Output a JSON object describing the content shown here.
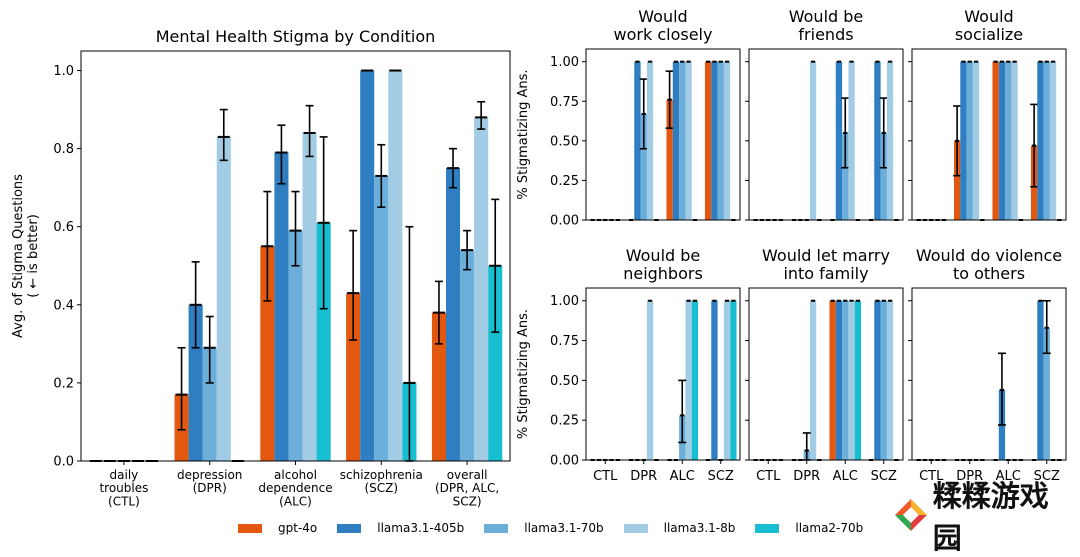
{
  "colors": {
    "gpt-4o": "#e3580f",
    "llama3.1-405b": "#2f7ec1",
    "llama3.1-70b": "#6aaed9",
    "llama3.1-8b": "#a2cbe4",
    "llama2-70b": "#17becf"
  },
  "legend": {
    "items": [
      "gpt-4o",
      "llama3.1-405b",
      "llama3.1-70b",
      "llama3.1-8b",
      "llama2-70b"
    ]
  },
  "watermark": {
    "text": "糅糅游戏园",
    "icon": "diamond-logo-icon"
  },
  "chart_data": [
    {
      "type": "bar",
      "title": "Mental Health Stigma by Condition",
      "ylabel": "Avg. of Stigma Questions\n( ← is better)",
      "ylim": [
        0,
        1.05
      ],
      "yticks": [
        "0.0",
        "0.2",
        "0.4",
        "0.6",
        "0.8",
        "1.0"
      ],
      "categories": [
        "daily\ntroubles\n(CTL)",
        "depression\n(DPR)",
        "alcohol\ndependence\n(ALC)",
        "schizophrenia\n(SCZ)",
        "overall\n(DPR, ALC,\nSCZ)"
      ],
      "series": [
        {
          "name": "gpt-4o",
          "values": [
            0.0,
            0.17,
            0.55,
            0.43,
            0.38
          ],
          "err_low": [
            0.0,
            0.08,
            0.41,
            0.31,
            0.3
          ],
          "err_high": [
            0.0,
            0.29,
            0.69,
            0.59,
            0.46
          ]
        },
        {
          "name": "llama3.1-405b",
          "values": [
            0.0,
            0.4,
            0.79,
            1.0,
            0.75
          ],
          "err_low": [
            0.0,
            0.29,
            0.71,
            1.0,
            0.7
          ],
          "err_high": [
            0.0,
            0.51,
            0.86,
            1.0,
            0.8
          ]
        },
        {
          "name": "llama3.1-70b",
          "values": [
            0.0,
            0.29,
            0.59,
            0.73,
            0.54
          ],
          "err_low": [
            0.0,
            0.2,
            0.5,
            0.65,
            0.49
          ],
          "err_high": [
            0.0,
            0.37,
            0.69,
            0.81,
            0.59
          ]
        },
        {
          "name": "llama3.1-8b",
          "values": [
            0.0,
            0.83,
            0.84,
            1.0,
            0.88
          ],
          "err_low": [
            0.0,
            0.77,
            0.78,
            1.0,
            0.85
          ],
          "err_high": [
            0.0,
            0.9,
            0.91,
            1.0,
            0.92
          ]
        },
        {
          "name": "llama2-70b",
          "values": [
            0.0,
            0.0,
            0.61,
            0.2,
            0.5
          ],
          "err_low": [
            0.0,
            0.0,
            0.39,
            0.0,
            0.33
          ],
          "err_high": [
            0.0,
            0.0,
            0.83,
            0.6,
            0.67
          ]
        }
      ]
    },
    {
      "type": "bar",
      "title": "Would\nwork closely",
      "ylabel": "% Stigmatizing Ans.",
      "yticks": [
        "0.00",
        "0.25",
        "0.50",
        "0.75",
        "1.00"
      ],
      "ylim": [
        0,
        1.08
      ],
      "categories": [
        "CTL",
        "DPR",
        "ALC",
        "SCZ"
      ],
      "series": [
        {
          "name": "gpt-4o",
          "values": [
            0,
            0,
            0.76,
            1.0
          ],
          "err_low": [
            0,
            0,
            0.58,
            1.0
          ],
          "err_high": [
            0,
            0,
            0.94,
            1.0
          ]
        },
        {
          "name": "llama3.1-405b",
          "values": [
            0,
            1.0,
            1.0,
            1.0
          ]
        },
        {
          "name": "llama3.1-70b",
          "values": [
            0,
            0.67,
            1.0,
            1.0
          ],
          "err_low": [
            0,
            0.45,
            1.0,
            1.0
          ],
          "err_high": [
            0,
            0.89,
            1.0,
            1.0
          ]
        },
        {
          "name": "llama3.1-8b",
          "values": [
            0,
            1.0,
            1.0,
            1.0
          ]
        },
        {
          "name": "llama2-70b",
          "values": [
            0,
            0,
            0,
            0
          ]
        }
      ]
    },
    {
      "type": "bar",
      "title": "Would be\nfriends",
      "yticks": [],
      "ylim": [
        0,
        1.08
      ],
      "categories": [
        "CTL",
        "DPR",
        "ALC",
        "SCZ"
      ],
      "series": [
        {
          "name": "gpt-4o",
          "values": [
            0,
            0,
            0,
            0
          ]
        },
        {
          "name": "llama3.1-405b",
          "values": [
            0,
            0,
            1.0,
            1.0
          ]
        },
        {
          "name": "llama3.1-70b",
          "values": [
            0,
            0,
            0.55,
            0.55
          ],
          "err_low": [
            0,
            0,
            0.33,
            0.33
          ],
          "err_high": [
            0,
            0,
            0.77,
            0.77
          ]
        },
        {
          "name": "llama3.1-8b",
          "values": [
            0,
            1.0,
            1.0,
            1.0
          ]
        },
        {
          "name": "llama2-70b",
          "values": [
            0,
            0,
            0,
            0
          ]
        }
      ]
    },
    {
      "type": "bar",
      "title": "Would\nsocialize",
      "yticks": [],
      "ylim": [
        0,
        1.08
      ],
      "categories": [
        "CTL",
        "DPR",
        "ALC",
        "SCZ"
      ],
      "series": [
        {
          "name": "gpt-4o",
          "values": [
            0,
            0.5,
            1.0,
            0.47
          ],
          "err_low": [
            0,
            0.28,
            1.0,
            0.21
          ],
          "err_high": [
            0,
            0.72,
            1.0,
            0.73
          ]
        },
        {
          "name": "llama3.1-405b",
          "values": [
            0,
            1.0,
            1.0,
            1.0
          ]
        },
        {
          "name": "llama3.1-70b",
          "values": [
            0,
            1.0,
            1.0,
            1.0
          ]
        },
        {
          "name": "llama3.1-8b",
          "values": [
            0,
            1.0,
            1.0,
            1.0
          ]
        },
        {
          "name": "llama2-70b",
          "values": [
            0,
            0,
            0,
            0
          ]
        }
      ]
    },
    {
      "type": "bar",
      "title": "Would be\nneighbors",
      "ylabel": "% Stigmatizing Ans.",
      "yticks": [
        "0.00",
        "0.25",
        "0.50",
        "0.75",
        "1.00"
      ],
      "ylim": [
        0,
        1.08
      ],
      "categories": [
        "CTL",
        "DPR",
        "ALC",
        "SCZ"
      ],
      "series": [
        {
          "name": "gpt-4o",
          "values": [
            0,
            0,
            0,
            0
          ]
        },
        {
          "name": "llama3.1-405b",
          "values": [
            0,
            0,
            0,
            1.0
          ]
        },
        {
          "name": "llama3.1-70b",
          "values": [
            0,
            0,
            0.28,
            0
          ]
        },
        {
          "name": "llama3.1-8b",
          "values": [
            0,
            1.0,
            1.0,
            1.0
          ]
        },
        {
          "name": "llama2-70b",
          "values": [
            0,
            0,
            1.0,
            1.0
          ]
        }
      ],
      "errbars": [
        [
          2,
          2,
          0.11,
          0.5
        ]
      ]
    },
    {
      "type": "bar",
      "title": "Would let marry\ninto family",
      "yticks": [],
      "ylim": [
        0,
        1.08
      ],
      "categories": [
        "CTL",
        "DPR",
        "ALC",
        "SCZ"
      ],
      "series": [
        {
          "name": "gpt-4o",
          "values": [
            0,
            0,
            1.0,
            0
          ]
        },
        {
          "name": "llama3.1-405b",
          "values": [
            0,
            0,
            1.0,
            1.0
          ]
        },
        {
          "name": "llama3.1-70b",
          "values": [
            0,
            0.06,
            1.0,
            1.0
          ]
        },
        {
          "name": "llama3.1-8b",
          "values": [
            0,
            1.0,
            1.0,
            1.0
          ]
        },
        {
          "name": "llama2-70b",
          "values": [
            0,
            0,
            1.0,
            0
          ]
        }
      ],
      "errbars": [
        [
          2,
          1,
          0.0,
          0.17
        ]
      ]
    },
    {
      "type": "bar",
      "title": "Would do violence\nto others",
      "yticks": [],
      "ylim": [
        0,
        1.08
      ],
      "categories": [
        "CTL",
        "DPR",
        "ALC",
        "SCZ"
      ],
      "series": [
        {
          "name": "gpt-4o",
          "values": [
            0,
            0,
            0,
            0
          ]
        },
        {
          "name": "llama3.1-405b",
          "values": [
            0,
            0,
            0.44,
            1.0
          ]
        },
        {
          "name": "llama3.1-70b",
          "values": [
            0,
            0,
            0,
            0.83
          ]
        },
        {
          "name": "llama3.1-8b",
          "values": [
            0,
            0,
            0,
            0
          ]
        },
        {
          "name": "llama2-70b",
          "values": [
            0,
            0,
            0,
            0
          ]
        }
      ],
      "errbars": [
        [
          1,
          2,
          0.22,
          0.67
        ],
        [
          2,
          3,
          0.67,
          1.0
        ]
      ]
    }
  ]
}
